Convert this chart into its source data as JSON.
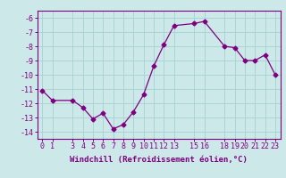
{
  "x": [
    0,
    1,
    3,
    4,
    5,
    6,
    7,
    8,
    9,
    10,
    11,
    12,
    13,
    15,
    16,
    18,
    19,
    20,
    21,
    22,
    23
  ],
  "y": [
    -11.1,
    -11.8,
    -11.8,
    -12.3,
    -13.1,
    -12.7,
    -13.8,
    -13.5,
    -12.6,
    -11.4,
    -9.4,
    -7.9,
    -6.55,
    -6.4,
    -6.25,
    -8.0,
    -8.1,
    -9.0,
    -9.0,
    -8.6,
    -10.0
  ],
  "xlim": [
    -0.5,
    23.5
  ],
  "ylim": [
    -14.5,
    -5.5
  ],
  "yticks": [
    -14,
    -13,
    -12,
    -11,
    -10,
    -9,
    -8,
    -7,
    -6
  ],
  "xtick_labels": [
    "0",
    "1",
    "3",
    "4",
    "5",
    "6",
    "7",
    "8",
    "9",
    "10",
    "11",
    "12",
    "13",
    "15",
    "16",
    "18",
    "19",
    "20",
    "21",
    "22",
    "23"
  ],
  "xlabel": "Windchill (Refroidissement éolien,°C)",
  "line_color": "#800080",
  "marker": "D",
  "marker_size": 2.5,
  "bg_color": "#cce8e8",
  "grid_color": "#aad4d4",
  "label_fontsize": 6.5,
  "tick_fontsize": 6
}
